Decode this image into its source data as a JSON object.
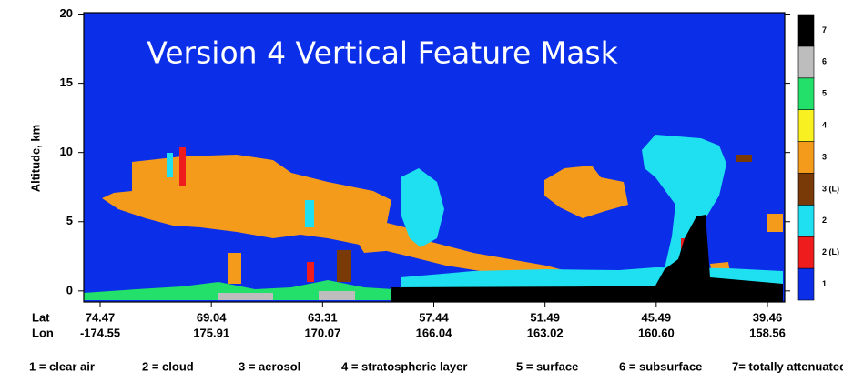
{
  "chart_data": {
    "type": "heatmap",
    "title": "Version 4 Vertical Feature Mask",
    "y_label": "Altitude, km",
    "ylim": [
      -0.8,
      20.1
    ],
    "yticks": [
      0,
      5,
      10,
      15,
      20
    ],
    "x_row_labels": [
      "Lat",
      "Lon"
    ],
    "lat": [
      "74.47",
      "69.04",
      "63.31",
      "57.44",
      "51.49",
      "45.49",
      "39.46"
    ],
    "lon": [
      "-174.55",
      "175.91",
      "170.07",
      "166.04",
      "163.02",
      "160.60",
      "158.56"
    ],
    "colorbar": {
      "labels": [
        "1",
        "2 (L)",
        "2",
        "3 (L)",
        "3",
        "4",
        "5",
        "6",
        "7"
      ],
      "colors": [
        "#0b2ee8",
        "#ee1c1c",
        "#1ee0f0",
        "#7a3a08",
        "#f59b1b",
        "#f8f020",
        "#22e06a",
        "#bdbdbd",
        "#000000"
      ]
    },
    "legend": [
      "1 = clear air",
      "2 = cloud",
      "3 = aerosol",
      "4 = stratospheric layer",
      "5 = surface",
      "6 = subsurface",
      "7= totally attenuated"
    ]
  }
}
